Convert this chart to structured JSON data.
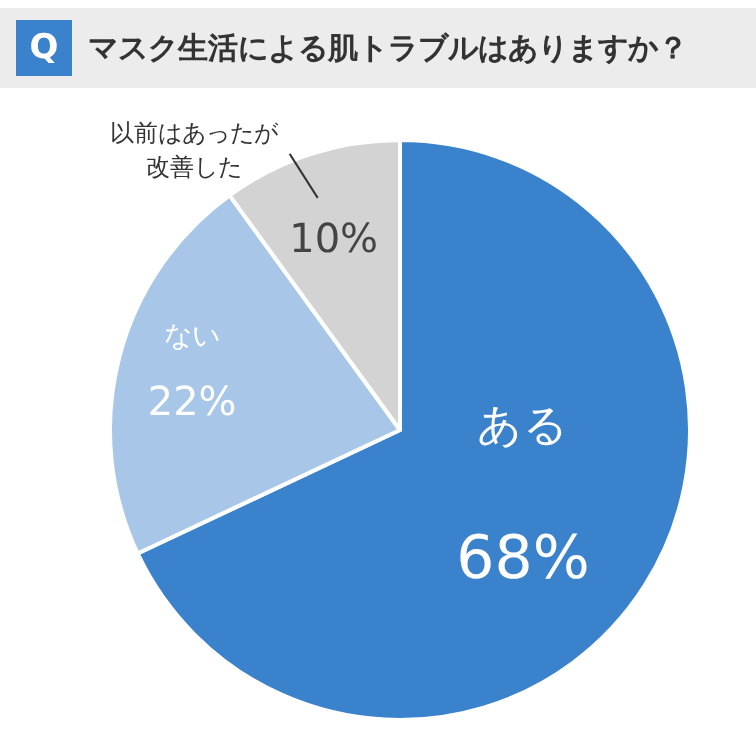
{
  "chart_data": {
    "type": "pie",
    "title": "マスク生活による肌トラブルはありますか？",
    "annotations": [
      "Q"
    ],
    "categories": [
      "ある",
      "ない",
      "以前はあったが改善した"
    ],
    "values": [
      68,
      22,
      10
    ],
    "value_labels": [
      "68%",
      "22%",
      "10%"
    ],
    "colors": [
      "#3b82cc",
      "#a8c7e8",
      "#d3d3d3"
    ]
  }
}
